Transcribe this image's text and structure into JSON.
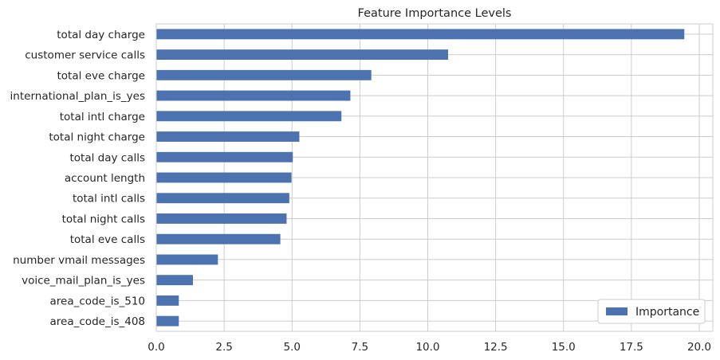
{
  "chart_data": {
    "type": "bar",
    "orientation": "horizontal",
    "title": "Feature Importance Levels",
    "xlabel": "",
    "ylabel": "",
    "xlim": [
      0,
      20.5
    ],
    "xticks": [
      "0.0",
      "2.5",
      "5.0",
      "7.5",
      "10.0",
      "12.5",
      "15.0",
      "17.5",
      "20.0"
    ],
    "grid": true,
    "legend": {
      "position": "bottom-right",
      "entries": [
        "Importance"
      ]
    },
    "categories": [
      "total day charge",
      "customer service calls",
      "total eve charge",
      "international_plan_is_yes",
      "total intl charge",
      "total night charge",
      "total day calls",
      "account length",
      "total intl calls",
      "total night calls",
      "total eve calls",
      "number vmail messages",
      "voice_mail_plan_is_yes",
      "area_code_is_510",
      "area_code_is_408"
    ],
    "series": [
      {
        "name": "Importance",
        "color": "#4c72b0",
        "values": [
          19.45,
          10.75,
          7.92,
          7.15,
          6.82,
          5.27,
          5.03,
          4.98,
          4.9,
          4.8,
          4.57,
          2.27,
          1.35,
          0.83,
          0.83
        ]
      }
    ]
  }
}
